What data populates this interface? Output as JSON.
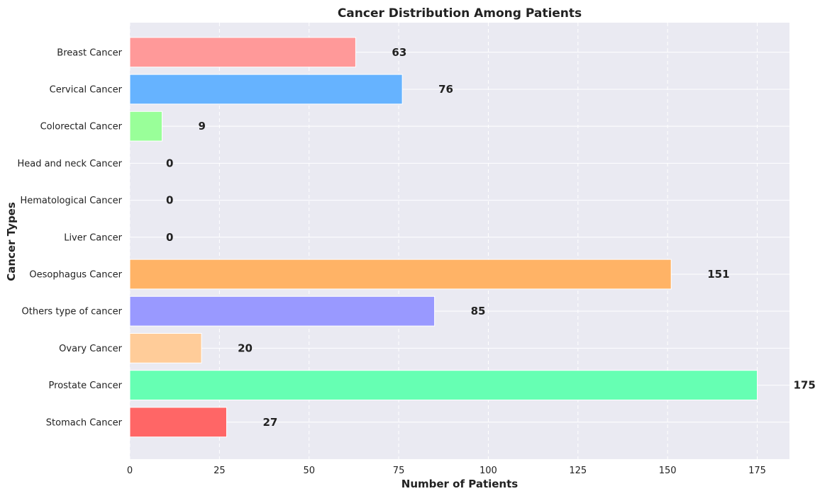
{
  "chart_data": {
    "type": "bar",
    "orientation": "horizontal",
    "title": "Cancer Distribution Among Patients",
    "xlabel": "Number of Patients",
    "ylabel": "Cancer Types",
    "categories": [
      "Breast Cancer",
      "Cervical Cancer",
      "Colorectal Cancer",
      "Head and neck Cancer",
      "Hematological Cancer",
      "Liver Cancer",
      "Oesophagus Cancer",
      "Others type of cancer",
      "Ovary Cancer",
      "Prostate Cancer",
      "Stomach Cancer"
    ],
    "values": [
      63,
      76,
      9,
      0,
      0,
      0,
      151,
      85,
      20,
      175,
      27
    ],
    "colors": [
      "#ff9999",
      "#66b3ff",
      "#99ff99",
      "#ffcc99",
      "#c2c2f0",
      "#ffb3e6",
      "#ffb366",
      "#9999ff",
      "#ffcc99",
      "#66ffb3",
      "#ff6666"
    ],
    "xlim": [
      0,
      184
    ],
    "xticks": [
      0,
      25,
      50,
      75,
      100,
      125,
      150,
      175
    ],
    "grid": true,
    "background": "#eaeaf2"
  }
}
